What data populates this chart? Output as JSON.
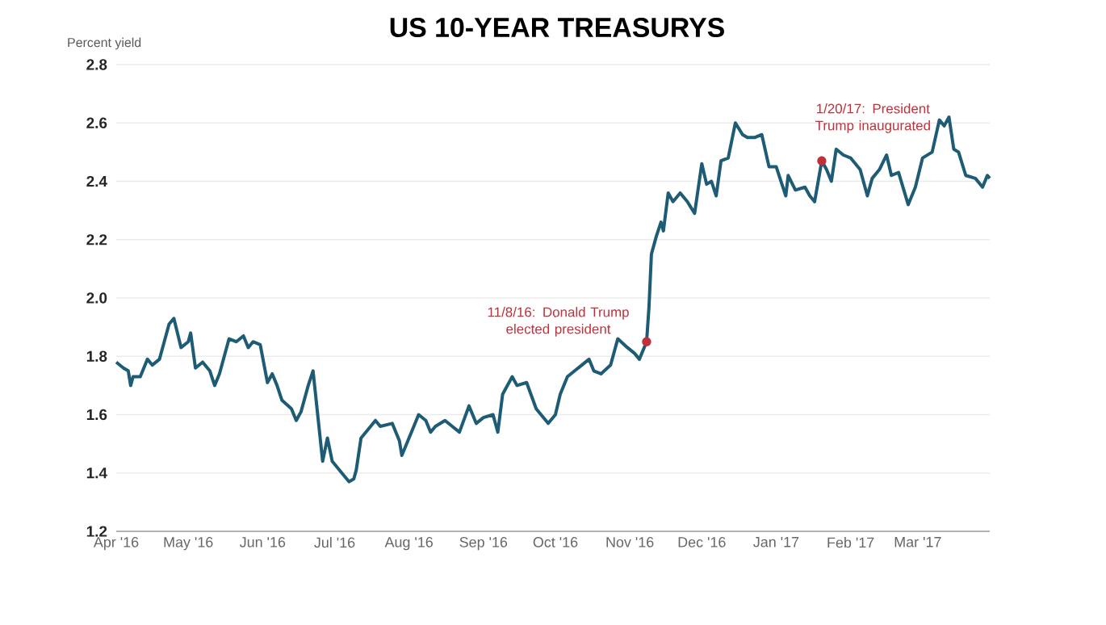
{
  "chart_data": {
    "type": "line",
    "title": "US 10-YEAR TREASURYS",
    "ylabel": "Percent yield",
    "x": [
      "2016-04-01",
      "2016-04-04",
      "2016-04-06",
      "2016-04-07",
      "2016-04-08",
      "2016-04-11",
      "2016-04-13",
      "2016-04-14",
      "2016-04-16",
      "2016-04-19",
      "2016-04-21",
      "2016-04-23",
      "2016-04-25",
      "2016-04-28",
      "2016-05-01",
      "2016-05-02",
      "2016-05-04",
      "2016-05-07",
      "2016-05-10",
      "2016-05-12",
      "2016-05-14",
      "2016-05-18",
      "2016-05-21",
      "2016-05-24",
      "2016-05-26",
      "2016-05-28",
      "2016-05-31",
      "2016-06-03",
      "2016-06-05",
      "2016-06-07",
      "2016-06-09",
      "2016-06-13",
      "2016-06-15",
      "2016-06-17",
      "2016-06-20",
      "2016-06-22",
      "2016-06-26",
      "2016-06-28",
      "2016-06-30",
      "2016-07-04",
      "2016-07-07",
      "2016-07-09",
      "2016-07-10",
      "2016-07-12",
      "2016-07-16",
      "2016-07-18",
      "2016-07-20",
      "2016-07-25",
      "2016-07-28",
      "2016-07-29",
      "2016-08-02",
      "2016-08-05",
      "2016-08-08",
      "2016-08-10",
      "2016-08-12",
      "2016-08-16",
      "2016-08-19",
      "2016-08-22",
      "2016-08-26",
      "2016-08-29",
      "2016-09-01",
      "2016-09-05",
      "2016-09-07",
      "2016-09-09",
      "2016-09-13",
      "2016-09-15",
      "2016-09-19",
      "2016-09-23",
      "2016-09-28",
      "2016-10-01",
      "2016-10-03",
      "2016-10-06",
      "2016-10-09",
      "2016-10-12",
      "2016-10-15",
      "2016-10-17",
      "2016-10-20",
      "2016-10-24",
      "2016-10-27",
      "2016-10-31",
      "2016-11-03",
      "2016-11-05",
      "2016-11-08",
      "2016-11-09",
      "2016-11-10",
      "2016-11-12",
      "2016-11-14",
      "2016-11-15",
      "2016-11-17",
      "2016-11-19",
      "2016-11-22",
      "2016-11-25",
      "2016-11-28",
      "2016-12-01",
      "2016-12-03",
      "2016-12-05",
      "2016-12-07",
      "2016-12-09",
      "2016-12-12",
      "2016-12-15",
      "2016-12-18",
      "2016-12-20",
      "2016-12-23",
      "2016-12-26",
      "2016-12-29",
      "2017-01-01",
      "2017-01-05",
      "2017-01-06",
      "2017-01-09",
      "2017-01-13",
      "2017-01-15",
      "2017-01-17",
      "2017-01-20",
      "2017-01-22",
      "2017-01-24",
      "2017-01-26",
      "2017-01-29",
      "2017-02-01",
      "2017-02-05",
      "2017-02-08",
      "2017-02-10",
      "2017-02-13",
      "2017-02-16",
      "2017-02-18",
      "2017-02-21",
      "2017-02-25",
      "2017-02-28",
      "2017-03-03",
      "2017-03-07",
      "2017-03-10",
      "2017-03-12",
      "2017-03-14",
      "2017-03-16",
      "2017-03-18",
      "2017-03-21",
      "2017-03-25",
      "2017-03-28",
      "2017-03-30",
      "2017-03-31"
    ],
    "values": [
      1.78,
      1.76,
      1.75,
      1.7,
      1.73,
      1.73,
      1.77,
      1.79,
      1.77,
      1.79,
      1.85,
      1.91,
      1.93,
      1.83,
      1.85,
      1.88,
      1.76,
      1.78,
      1.75,
      1.7,
      1.74,
      1.86,
      1.85,
      1.87,
      1.83,
      1.85,
      1.84,
      1.71,
      1.74,
      1.7,
      1.65,
      1.62,
      1.58,
      1.61,
      1.7,
      1.75,
      1.44,
      1.52,
      1.44,
      1.4,
      1.37,
      1.38,
      1.41,
      1.52,
      1.56,
      1.58,
      1.56,
      1.57,
      1.51,
      1.46,
      1.54,
      1.6,
      1.58,
      1.54,
      1.56,
      1.58,
      1.56,
      1.54,
      1.63,
      1.57,
      1.59,
      1.6,
      1.54,
      1.67,
      1.73,
      1.7,
      1.71,
      1.62,
      1.57,
      1.6,
      1.67,
      1.73,
      1.75,
      1.77,
      1.79,
      1.75,
      1.74,
      1.77,
      1.86,
      1.83,
      1.81,
      1.79,
      1.85,
      1.97,
      2.15,
      2.21,
      2.26,
      2.23,
      2.36,
      2.33,
      2.36,
      2.33,
      2.29,
      2.46,
      2.39,
      2.4,
      2.35,
      2.47,
      2.48,
      2.6,
      2.56,
      2.55,
      2.55,
      2.56,
      2.45,
      2.45,
      2.35,
      2.42,
      2.37,
      2.38,
      2.35,
      2.33,
      2.47,
      2.44,
      2.4,
      2.51,
      2.49,
      2.48,
      2.44,
      2.35,
      2.41,
      2.44,
      2.49,
      2.42,
      2.43,
      2.32,
      2.38,
      2.48,
      2.5,
      2.61,
      2.59,
      2.62,
      2.51,
      2.5,
      2.42,
      2.41,
      2.38,
      2.42,
      2.41
    ],
    "color": "#1d5c74",
    "xlim": [
      "2016-04-01",
      "2017-03-31"
    ],
    "xticks": [
      {
        "value": "2016-04-01",
        "label": "Apr '16"
      },
      {
        "value": "2016-05-01",
        "label": "May '16"
      },
      {
        "value": "2016-06-01",
        "label": "Jun '16"
      },
      {
        "value": "2016-07-01",
        "label": "Jul '16"
      },
      {
        "value": "2016-08-01",
        "label": "Aug '16"
      },
      {
        "value": "2016-09-01",
        "label": "Sep '16"
      },
      {
        "value": "2016-10-01",
        "label": "Oct '16"
      },
      {
        "value": "2016-11-01",
        "label": "Nov '16"
      },
      {
        "value": "2016-12-01",
        "label": "Dec '16"
      },
      {
        "value": "2017-01-01",
        "label": "Jan '17"
      },
      {
        "value": "2017-02-01",
        "label": "Feb '17"
      },
      {
        "value": "2017-03-01",
        "label": "Mar '17"
      }
    ],
    "ylim": [
      1.2,
      2.8
    ],
    "yticks": [
      1.2,
      1.4,
      1.6,
      1.8,
      {
        "value": 2,
        "label": "2.0"
      },
      2.2,
      2.4,
      2.6,
      2.8
    ],
    "grid": "y",
    "line_style": "solid",
    "annotations": [
      {
        "text": "11/8/16: Donald Trump elected president",
        "x": "2016-11-08",
        "y": 1.85
      },
      {
        "text": "1/20/17: President Trump inaugurated",
        "x": "2017-01-20",
        "y": 2.47
      }
    ]
  }
}
